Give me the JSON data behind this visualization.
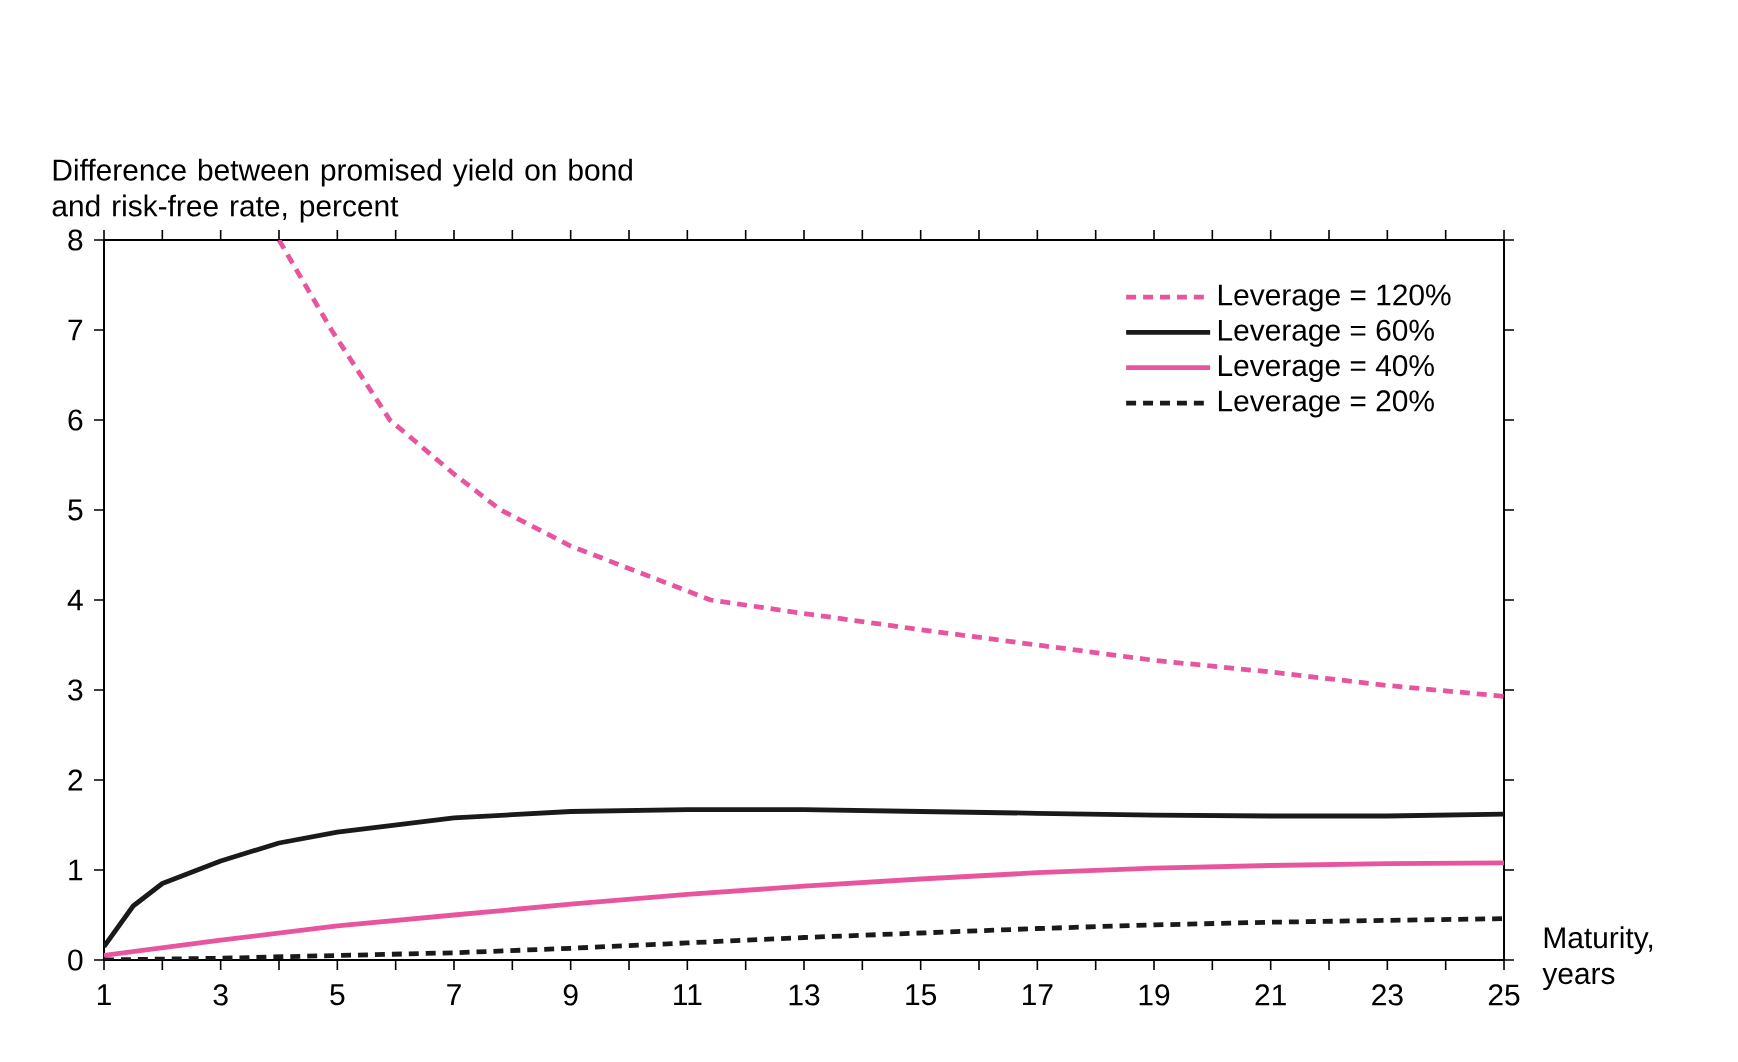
{
  "chart_data": {
    "type": "line",
    "ylabel": "Difference between promised yield on bond and risk-free rate, percent",
    "xlabel": "Maturity, years",
    "xlim": [
      1,
      25
    ],
    "ylim": [
      0,
      8
    ],
    "xticks": [
      1,
      {
        "value": 2,
        "label": null
      },
      3,
      {
        "value": 4,
        "label": null
      },
      5,
      {
        "value": 6,
        "label": null
      },
      7,
      {
        "value": 8,
        "label": null
      },
      9,
      {
        "value": 10,
        "label": null
      },
      11,
      {
        "value": 12,
        "label": null
      },
      13,
      {
        "value": 14,
        "label": null
      },
      15,
      {
        "value": 16,
        "label": null
      },
      17,
      {
        "value": 18,
        "label": null
      },
      19,
      {
        "value": 20,
        "label": null
      },
      21,
      {
        "value": 22,
        "label": null
      },
      23,
      {
        "value": 24,
        "label": null
      },
      25
    ],
    "yticks": [
      0,
      1,
      2,
      3,
      4,
      5,
      6,
      7,
      8
    ],
    "legend": "top right",
    "series": [
      {
        "name": "Leverage = 120%",
        "color": "#e8559f",
        "line_style": "dashed",
        "x": [
          4,
          4.9,
          5.9,
          7,
          7.8,
          9,
          11.4,
          13,
          15,
          17,
          19,
          21,
          23,
          25
        ],
        "values": [
          8.0,
          7.0,
          6.0,
          5.4,
          5.0,
          4.6,
          4.0,
          3.85,
          3.67,
          3.5,
          3.33,
          3.2,
          3.05,
          2.93
        ]
      },
      {
        "name": "Leverage = 60%",
        "color": "#1a1a1a",
        "line_style": "solid",
        "x": [
          1,
          1.5,
          2,
          3,
          4,
          5,
          7,
          9,
          11,
          13,
          15,
          17,
          19,
          21,
          23,
          25
        ],
        "values": [
          0.15,
          0.6,
          0.85,
          1.1,
          1.3,
          1.42,
          1.58,
          1.65,
          1.67,
          1.67,
          1.65,
          1.63,
          1.61,
          1.6,
          1.6,
          1.62
        ]
      },
      {
        "name": "Leverage = 40%",
        "color": "#e8559f",
        "line_style": "solid",
        "x": [
          1,
          3,
          5,
          7,
          9,
          11,
          13,
          15,
          17,
          19,
          21,
          23,
          25
        ],
        "values": [
          0.05,
          0.22,
          0.38,
          0.5,
          0.62,
          0.73,
          0.82,
          0.9,
          0.97,
          1.02,
          1.05,
          1.07,
          1.08
        ]
      },
      {
        "name": "Leverage = 20%",
        "color": "#1a1a1a",
        "line_style": "dashed",
        "x": [
          1,
          3,
          5,
          7,
          9,
          11,
          13,
          15,
          17,
          19,
          21,
          23,
          25
        ],
        "values": [
          0.0,
          0.02,
          0.05,
          0.08,
          0.13,
          0.19,
          0.25,
          0.3,
          0.35,
          0.39,
          0.42,
          0.44,
          0.46
        ]
      }
    ]
  }
}
